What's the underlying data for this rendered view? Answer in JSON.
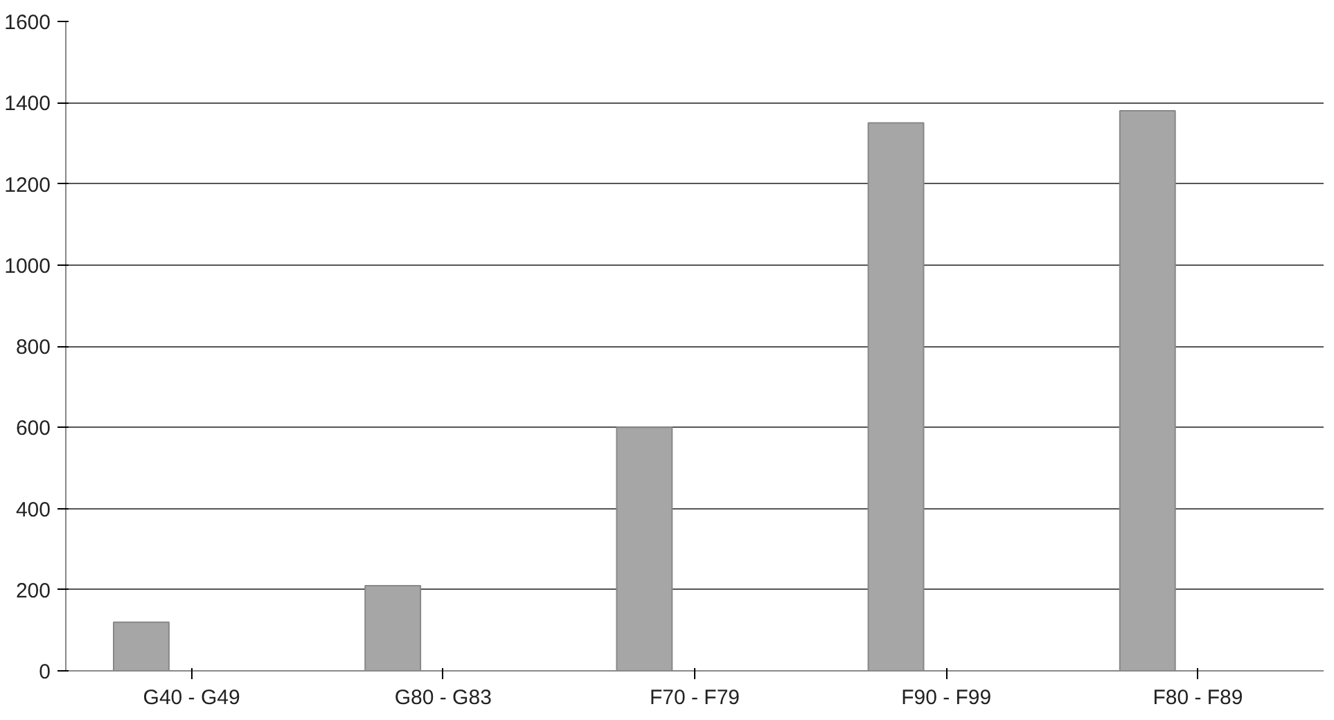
{
  "chart_data": {
    "type": "bar",
    "categories": [
      "G40 - G49",
      "G80 - G83",
      "F70 - F79",
      "F90 - F99",
      "F80 - F89"
    ],
    "values": [
      120,
      210,
      600,
      1350,
      1380
    ],
    "color": "#a6a6a6",
    "ylim": [
      0,
      1600
    ],
    "yticks": [
      0,
      200,
      400,
      600,
      800,
      1000,
      1200,
      1400,
      1600
    ],
    "grid": "y"
  }
}
